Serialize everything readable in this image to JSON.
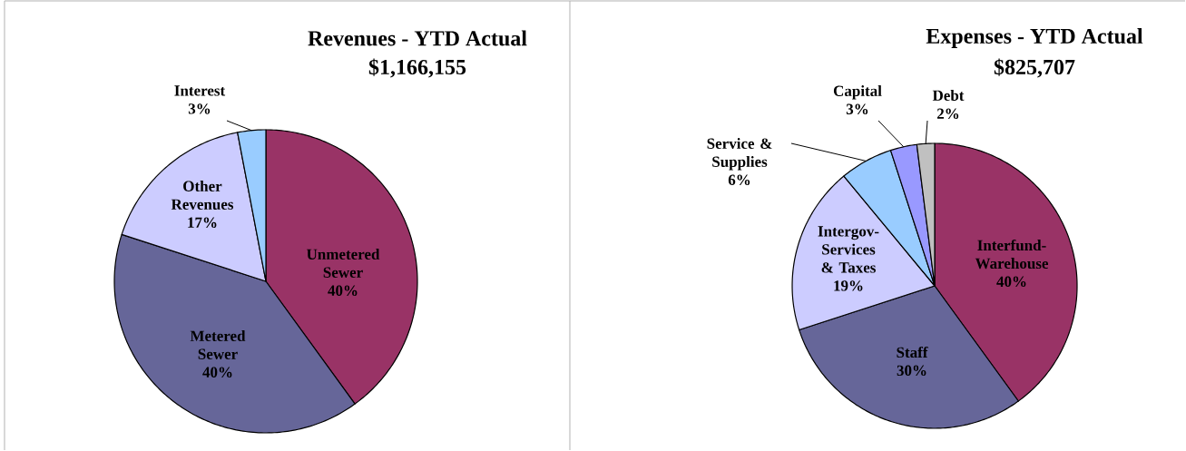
{
  "chart_data": [
    {
      "type": "pie",
      "title": "Revenues - YTD Actual",
      "subtitle": "$1,166,155",
      "categories": [
        "Unmetered Sewer",
        "Metered Sewer",
        "Other Revenues",
        "Interest"
      ],
      "values": [
        40,
        40,
        17,
        3
      ],
      "value_labels": [
        "40%",
        "40%",
        "17%",
        "3%"
      ],
      "colors": [
        "#993366",
        "#666699",
        "#ccccff",
        "#99ccff"
      ]
    },
    {
      "type": "pie",
      "title": "Expenses - YTD Actual",
      "subtitle": "$825,707",
      "categories": [
        "Interfund-Warehouse",
        "Staff",
        "Intergov-Services & Taxes",
        "Service & Supplies",
        "Capital",
        "Debt"
      ],
      "values": [
        40,
        30,
        19,
        6,
        3,
        2
      ],
      "value_labels": [
        "40%",
        "30%",
        "19%",
        "6%",
        "3%",
        "2%"
      ],
      "colors": [
        "#993366",
        "#666699",
        "#ccccff",
        "#99ccff",
        "#9999ff",
        "#c0c0c0"
      ]
    }
  ]
}
